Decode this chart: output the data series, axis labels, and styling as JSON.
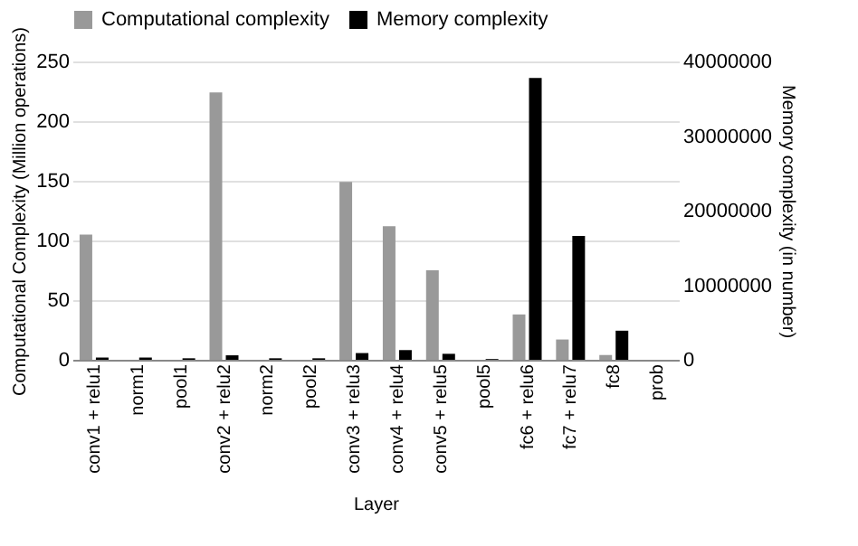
{
  "chart_data": {
    "type": "bar",
    "categories": [
      "conv1 + relu1",
      "norm1",
      "pool1",
      "conv2 + relu2",
      "norm2",
      "pool2",
      "conv3 + relu3",
      "conv4 + relu4",
      "conv5 + relu5",
      "pool5",
      "fc6 + relu6",
      "fc7 + relu7",
      "fc8",
      "prob"
    ],
    "series": [
      {
        "name": "Computational complexity",
        "color": "#999999",
        "values": [
          105,
          0,
          0,
          224,
          0,
          0,
          149,
          112,
          75,
          0,
          38,
          17,
          4,
          0
        ]
      },
      {
        "name": "Memory complexity",
        "color": "#000000",
        "axis": "y2",
        "values": [
          300000,
          300000,
          200000,
          600000,
          200000,
          200000,
          900000,
          1300000,
          800000,
          100000,
          37800000,
          16600000,
          3900000,
          0
        ]
      }
    ],
    "xlabel": "Layer",
    "ylabel": "Computational Complexity (Million operations)",
    "y2label": "Memory complexity (in number)",
    "ylim": [
      0,
      250
    ],
    "yticks": [
      0,
      50,
      100,
      150,
      200,
      250
    ],
    "y2lim": [
      0,
      40000000
    ],
    "y2ticks": [
      0,
      10000000,
      20000000,
      30000000,
      40000000
    ],
    "grid": "y",
    "legend": "top"
  }
}
